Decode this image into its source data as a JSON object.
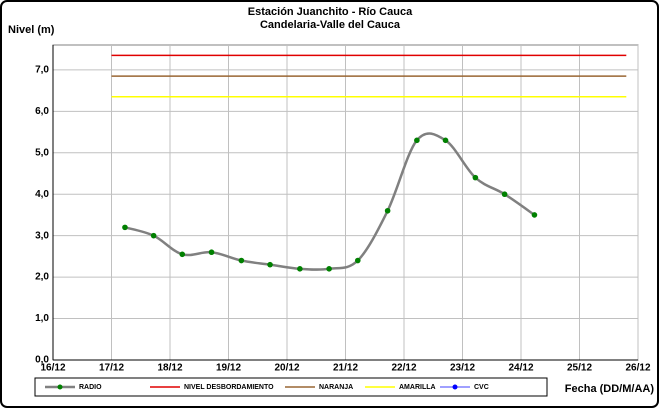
{
  "chart_data": {
    "type": "line",
    "title": "Estación Juanchito - Río Cauca",
    "subtitle": "Candelaria-Valle del Cauca",
    "y_label": "Nivel (m)",
    "x_label": "Fecha (DD/M/AA)",
    "xlim": [
      16,
      26
    ],
    "ylim": [
      0,
      7.6
    ],
    "xticks": [
      {
        "value": 16,
        "label": "16/12"
      },
      {
        "value": 17,
        "label": "17/12"
      },
      {
        "value": 18,
        "label": "18/12"
      },
      {
        "value": 19,
        "label": "19/12"
      },
      {
        "value": 20,
        "label": "20/12"
      },
      {
        "value": 21,
        "label": "21/12"
      },
      {
        "value": 22,
        "label": "22/12"
      },
      {
        "value": 23,
        "label": "23/12"
      },
      {
        "value": 24,
        "label": "24/12"
      },
      {
        "value": 25,
        "label": "25/12"
      },
      {
        "value": 26,
        "label": "26/12"
      }
    ],
    "yticks": [
      {
        "value": 0,
        "label": "0,0"
      },
      {
        "value": 1,
        "label": "1,0"
      },
      {
        "value": 2,
        "label": "2,0"
      },
      {
        "value": 3,
        "label": "3,0"
      },
      {
        "value": 4,
        "label": "4,0"
      },
      {
        "value": 5,
        "label": "5,0"
      },
      {
        "value": 6,
        "label": "6,0"
      },
      {
        "value": 7,
        "label": "7,0"
      }
    ],
    "grid": true,
    "legend": "bottom",
    "series": [
      {
        "name": "RADIO",
        "color": "#808080",
        "marker_color": "#008000",
        "markers": true,
        "smooth": true,
        "x": [
          17.23,
          17.72,
          18.21,
          18.71,
          19.22,
          19.71,
          20.22,
          20.72,
          21.21,
          21.72,
          22.22,
          22.71,
          23.22,
          23.72,
          24.23
        ],
        "values": [
          3.2,
          3.0,
          2.55,
          2.6,
          2.4,
          2.3,
          2.2,
          2.2,
          2.4,
          3.6,
          5.3,
          5.3,
          4.4,
          4.0,
          3.5
        ]
      },
      {
        "name": "NIVEL DESBORDAMIENTO",
        "color": "#e00000",
        "markers": false,
        "x": [
          17.0,
          25.8
        ],
        "values": [
          7.35,
          7.35
        ]
      },
      {
        "name": "NARANJA",
        "color": "#996633",
        "markers": false,
        "x": [
          17.0,
          25.8
        ],
        "values": [
          6.85,
          6.85
        ]
      },
      {
        "name": "AMARILLA",
        "color": "#ffff00",
        "markers": false,
        "x": [
          17.0,
          25.8
        ],
        "values": [
          6.35,
          6.35
        ]
      },
      {
        "name": "CVC",
        "color": "#0000ff",
        "marker_color": "#0000ff",
        "markers": true,
        "x": [],
        "values": []
      }
    ]
  }
}
